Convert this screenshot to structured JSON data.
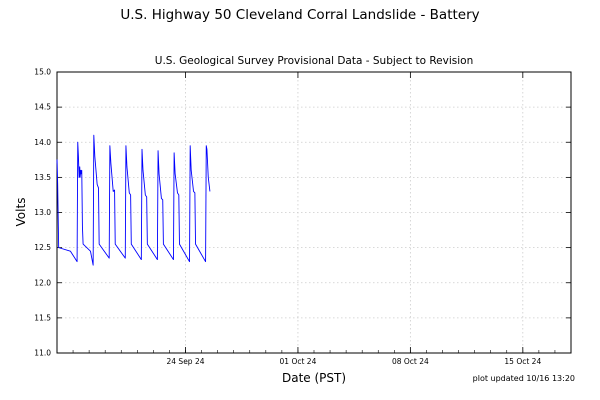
{
  "chart_data": {
    "type": "line",
    "title": "U.S. Highway 50 Cleveland Corral Landslide - Battery",
    "subtitle": "U.S. Geological Survey Provisional Data - Subject to Revision",
    "xlabel": "Date (PST)",
    "ylabel": "Volts",
    "footer": "plot updated 10/16 13:20",
    "xlim": [
      "2024-09-16 00:00",
      "2024-10-18 00:00"
    ],
    "ylim": [
      11.0,
      15.0
    ],
    "yticks": [
      "11.0",
      "11.5",
      "12.0",
      "12.5",
      "13.0",
      "13.5",
      "14.0",
      "14.5",
      "15.0"
    ],
    "xticks": [
      {
        "date": "2024-09-24 00:00",
        "label": "24 Sep 24"
      },
      {
        "date": "2024-10-01 00:00",
        "label": "01 Oct 24"
      },
      {
        "date": "2024-10-08 00:00",
        "label": "08 Oct 24"
      },
      {
        "date": "2024-10-15 00:00",
        "label": "15 Oct 24"
      }
    ],
    "grid": true,
    "line_color": "#0000ff",
    "series": [
      {
        "points": [
          [
            "2024-09-16 00:00",
            13.7
          ],
          [
            "2024-09-16 00:05",
            13.75
          ],
          [
            "2024-09-16 01:00",
            13.4
          ],
          [
            "2024-09-16 02:30",
            12.5
          ],
          [
            "2024-09-16 20:00",
            12.45
          ],
          [
            "2024-09-17 06:00",
            12.3
          ],
          [
            "2024-09-17 07:00",
            14.0
          ],
          [
            "2024-09-17 08:00",
            13.8
          ],
          [
            "2024-09-17 09:00",
            13.5
          ],
          [
            "2024-09-17 10:00",
            13.65
          ],
          [
            "2024-09-17 10:30",
            13.5
          ],
          [
            "2024-09-17 11:30",
            13.6
          ],
          [
            "2024-09-17 12:00",
            13.55
          ],
          [
            "2024-09-17 13:00",
            13.6
          ],
          [
            "2024-09-17 14:00",
            12.8
          ],
          [
            "2024-09-17 15:00",
            12.55
          ],
          [
            "2024-09-18 02:00",
            12.45
          ],
          [
            "2024-09-18 06:00",
            12.25
          ],
          [
            "2024-09-18 07:00",
            14.1
          ],
          [
            "2024-09-18 08:30",
            13.8
          ],
          [
            "2024-09-18 12:00",
            13.4
          ],
          [
            "2024-09-18 14:00",
            13.35
          ],
          [
            "2024-09-18 15:00",
            12.55
          ],
          [
            "2024-09-19 06:00",
            12.35
          ],
          [
            "2024-09-19 07:00",
            13.95
          ],
          [
            "2024-09-19 08:30",
            13.7
          ],
          [
            "2024-09-19 12:00",
            13.3
          ],
          [
            "2024-09-19 14:00",
            13.32
          ],
          [
            "2024-09-19 15:00",
            12.55
          ],
          [
            "2024-09-20 06:00",
            12.35
          ],
          [
            "2024-09-20 07:00",
            13.95
          ],
          [
            "2024-09-20 08:30",
            13.65
          ],
          [
            "2024-09-20 12:00",
            13.28
          ],
          [
            "2024-09-20 14:00",
            13.25
          ],
          [
            "2024-09-20 15:00",
            12.55
          ],
          [
            "2024-09-21 06:00",
            12.33
          ],
          [
            "2024-09-21 07:00",
            13.9
          ],
          [
            "2024-09-21 08:30",
            13.6
          ],
          [
            "2024-09-21 12:00",
            13.25
          ],
          [
            "2024-09-21 14:00",
            13.22
          ],
          [
            "2024-09-21 15:00",
            12.55
          ],
          [
            "2024-09-22 06:00",
            12.33
          ],
          [
            "2024-09-22 07:00",
            13.88
          ],
          [
            "2024-09-22 08:30",
            13.55
          ],
          [
            "2024-09-22 12:00",
            13.2
          ],
          [
            "2024-09-22 14:00",
            13.18
          ],
          [
            "2024-09-22 15:00",
            12.55
          ],
          [
            "2024-09-23 06:00",
            12.33
          ],
          [
            "2024-09-23 07:00",
            13.85
          ],
          [
            "2024-09-23 08:30",
            13.55
          ],
          [
            "2024-09-23 12:00",
            13.28
          ],
          [
            "2024-09-23 14:00",
            13.25
          ],
          [
            "2024-09-23 15:00",
            12.55
          ],
          [
            "2024-09-24 06:00",
            12.3
          ],
          [
            "2024-09-24 07:00",
            13.95
          ],
          [
            "2024-09-24 08:30",
            13.6
          ],
          [
            "2024-09-24 12:00",
            13.3
          ],
          [
            "2024-09-24 14:00",
            13.28
          ],
          [
            "2024-09-24 15:00",
            12.55
          ],
          [
            "2024-09-25 06:00",
            12.3
          ],
          [
            "2024-09-25 07:00",
            13.95
          ],
          [
            "2024-09-25 08:00",
            13.9
          ],
          [
            "2024-09-25 10:00",
            13.5
          ],
          [
            "2024-09-25 12:30",
            13.3
          ]
        ]
      }
    ]
  }
}
